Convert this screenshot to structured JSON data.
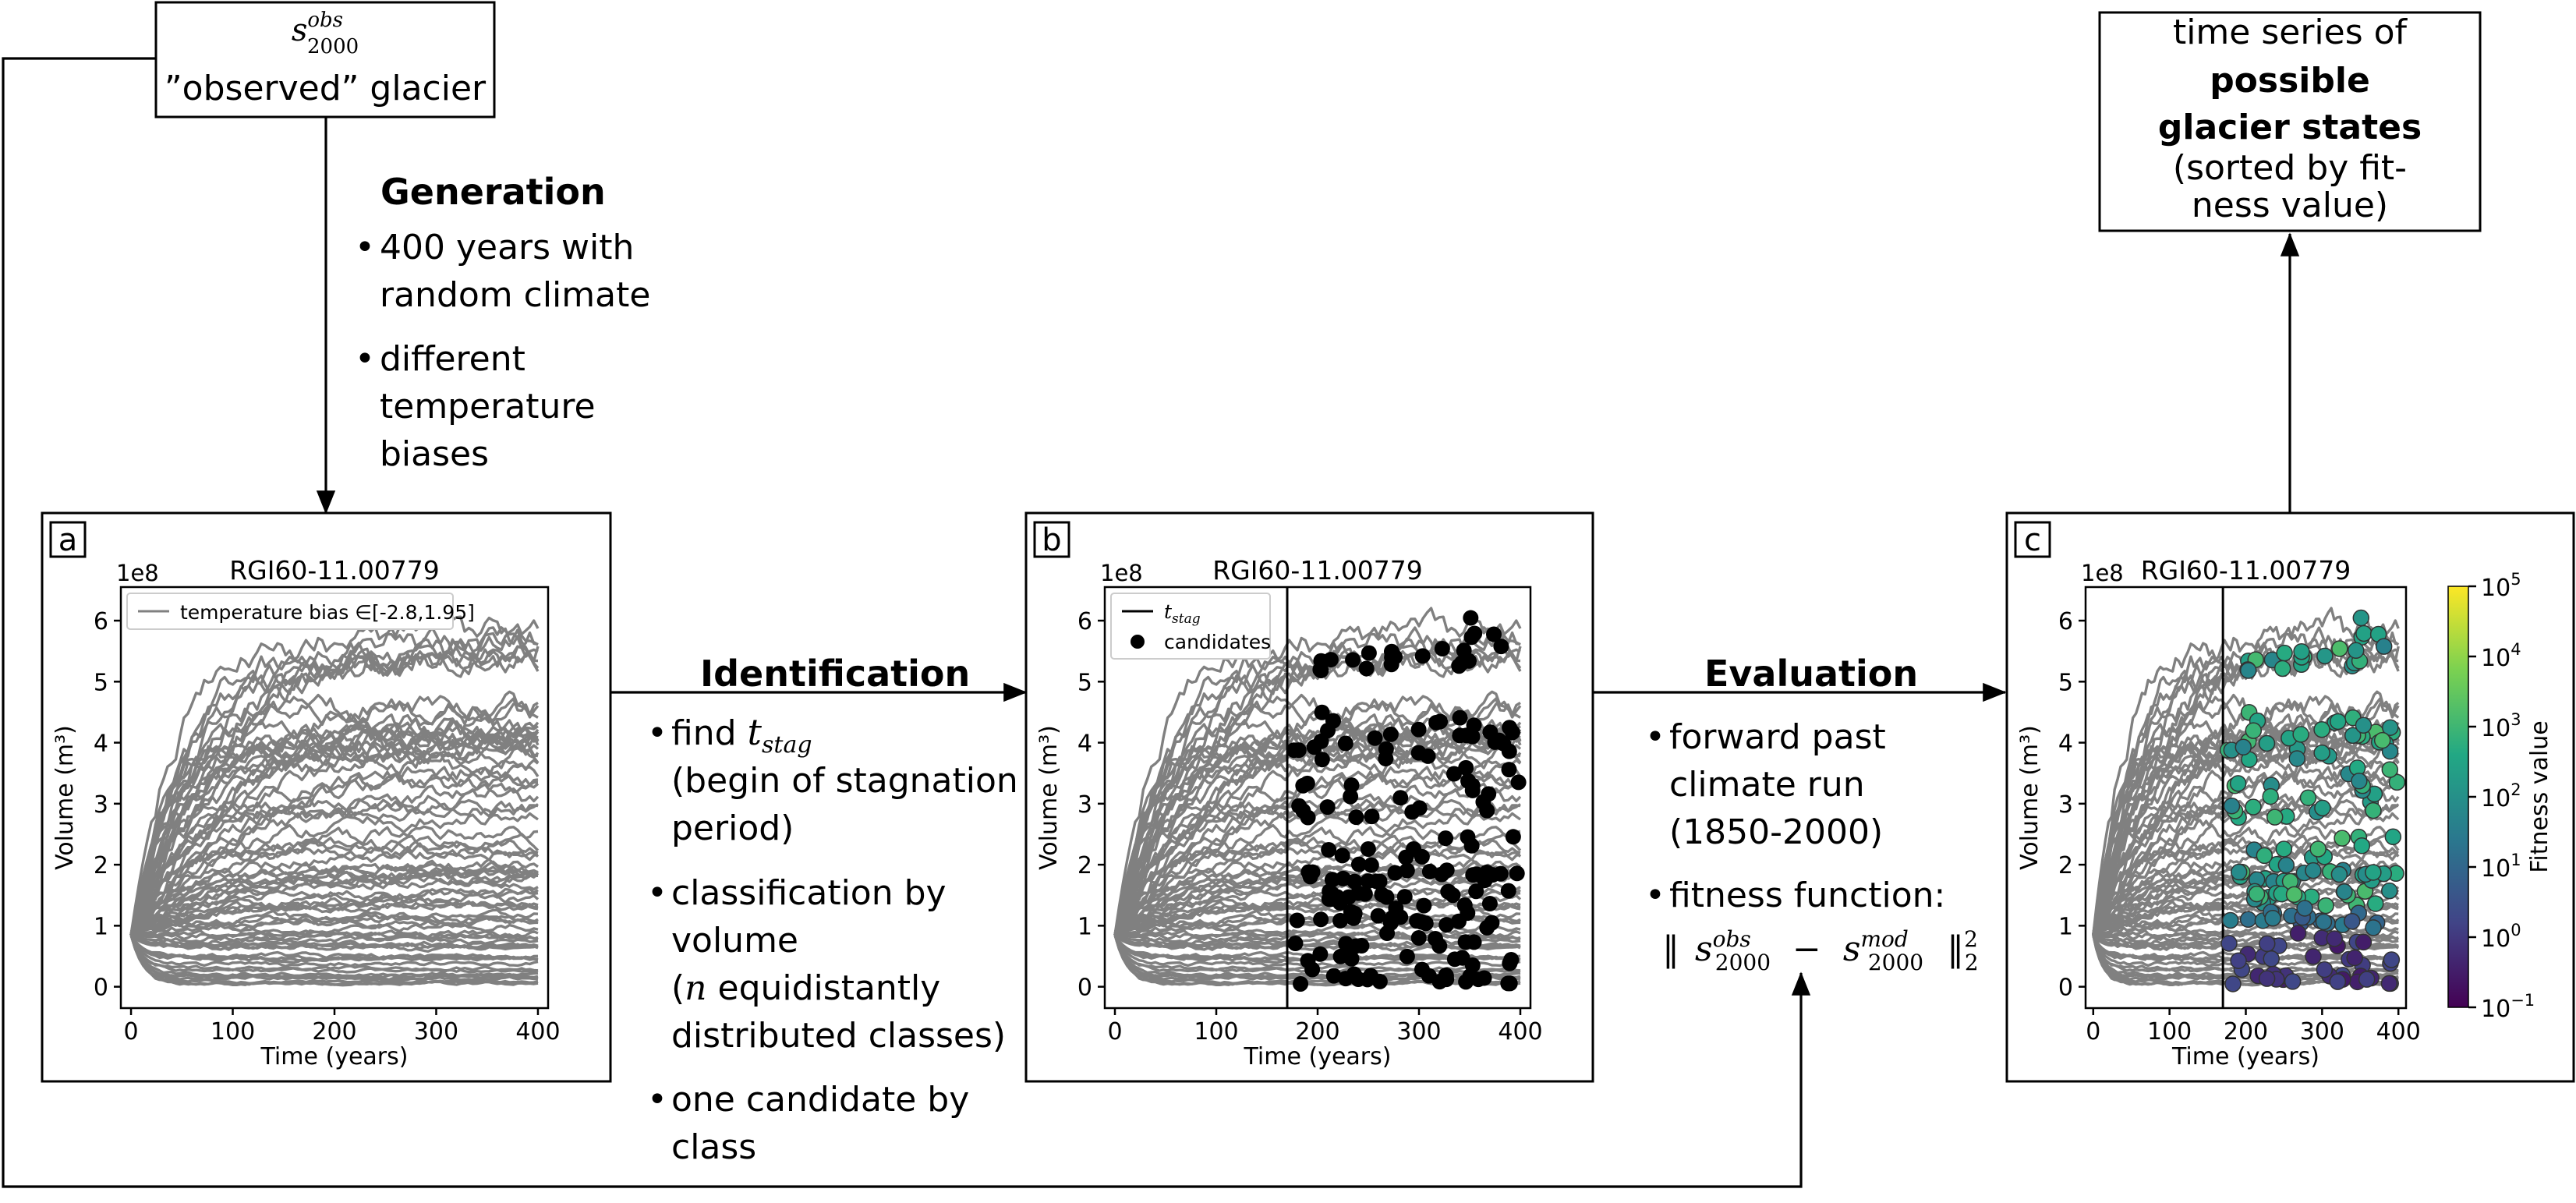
{
  "input_box": {
    "symbol_base": "s",
    "symbol_sup": "obs",
    "symbol_sub": "2000",
    "label": "”observed” glacier"
  },
  "generation": {
    "title": "Generation",
    "bullets": [
      [
        "400 years with",
        "random climate"
      ],
      [
        "different",
        "temperature",
        "biases"
      ]
    ]
  },
  "identification": {
    "title": "Identification",
    "bullet1_prefix": "find ",
    "bullet1_math_base": "t",
    "bullet1_math_sub": "stag",
    "bullet1_lines": [
      "(begin of stagnation",
      "period)"
    ],
    "bullet2_lines": [
      "classification by",
      "volume"
    ],
    "bullet2_math": "n",
    "bullet2_line3_rest": " equidistantly",
    "bullet2_line4": "distributed classes)",
    "bullet3_lines": [
      "one candidate by",
      "class"
    ]
  },
  "evaluation": {
    "title": "Evaluation",
    "bullet1_lines": [
      "forward past",
      "climate run",
      "(1850-2000)"
    ],
    "bullet2_line": "fitness function:",
    "formula": {
      "norm": "‖",
      "base": "s",
      "obs_sup": "obs",
      "mod_sup": "mod",
      "sub": "2000",
      "minus": "−",
      "power": "2"
    }
  },
  "output_box": {
    "lines": [
      "time series of",
      "possible",
      "glacier states",
      "(sorted by fit-",
      "ness value)"
    ]
  },
  "panels": [
    {
      "letter": "a"
    },
    {
      "letter": "b"
    },
    {
      "letter": "c"
    }
  ],
  "colorbar": {
    "label": "Fitness value",
    "ticks": [
      "10",
      "10",
      "10",
      "10",
      "10",
      "10",
      "10"
    ],
    "exponents": [
      "5",
      "4",
      "3",
      "2",
      "1",
      "0",
      "−1"
    ],
    "colors": [
      "#fde725",
      "#5ec962",
      "#21918c",
      "#3b528b",
      "#440154"
    ]
  },
  "chart_data": [
    {
      "type": "line",
      "title": "RGI60-11.00779",
      "xlabel": "Time (years)",
      "ylabel": "Volume (m³)",
      "y_multiplier": "1e8",
      "xlim": [
        -10,
        410
      ],
      "ylim": [
        -0.35,
        6.55
      ],
      "xticks": [
        "0",
        "100",
        "200",
        "300",
        "400"
      ],
      "yticks": [
        "0",
        "1",
        "2",
        "3",
        "4",
        "5",
        "6"
      ],
      "legend": [
        {
          "name": "temperature bias ∈[-2.8,1.95]"
        }
      ],
      "legend_position": "top-left",
      "initial_volume": 0.85,
      "n_series": 80,
      "series_color": "#808080"
    },
    {
      "type": "scatter",
      "title": "RGI60-11.00779",
      "xlabel": "Time (years)",
      "ylabel": "Volume (m³)",
      "y_multiplier": "1e8",
      "xlim": [
        -10,
        410
      ],
      "ylim": [
        -0.35,
        6.55
      ],
      "xticks": [
        "0",
        "100",
        "200",
        "300",
        "400"
      ],
      "yticks": [
        "0",
        "1",
        "2",
        "3",
        "4",
        "5",
        "6"
      ],
      "legend": [
        {
          "name": "t_stag",
          "display_base": "t",
          "display_sub": "stag"
        },
        {
          "name": "candidates"
        }
      ],
      "legend_position": "top-left",
      "t_stag": 170,
      "candidate_count": 190,
      "candidate_color": "#000000"
    },
    {
      "type": "scatter",
      "title": "RGI60-11.00779",
      "xlabel": "Time (years)",
      "ylabel": "Volume (m³)",
      "y_multiplier": "1e8",
      "xlim": [
        -10,
        410
      ],
      "ylim": [
        -0.35,
        6.55
      ],
      "xticks": [
        "0",
        "100",
        "200",
        "300",
        "400"
      ],
      "yticks": [
        "0",
        "1",
        "2",
        "3",
        "4",
        "5",
        "6"
      ],
      "t_stag": 170,
      "candidate_count": 190,
      "color_scale": "viridis",
      "color_range_log10": [
        -1,
        5
      ]
    }
  ]
}
